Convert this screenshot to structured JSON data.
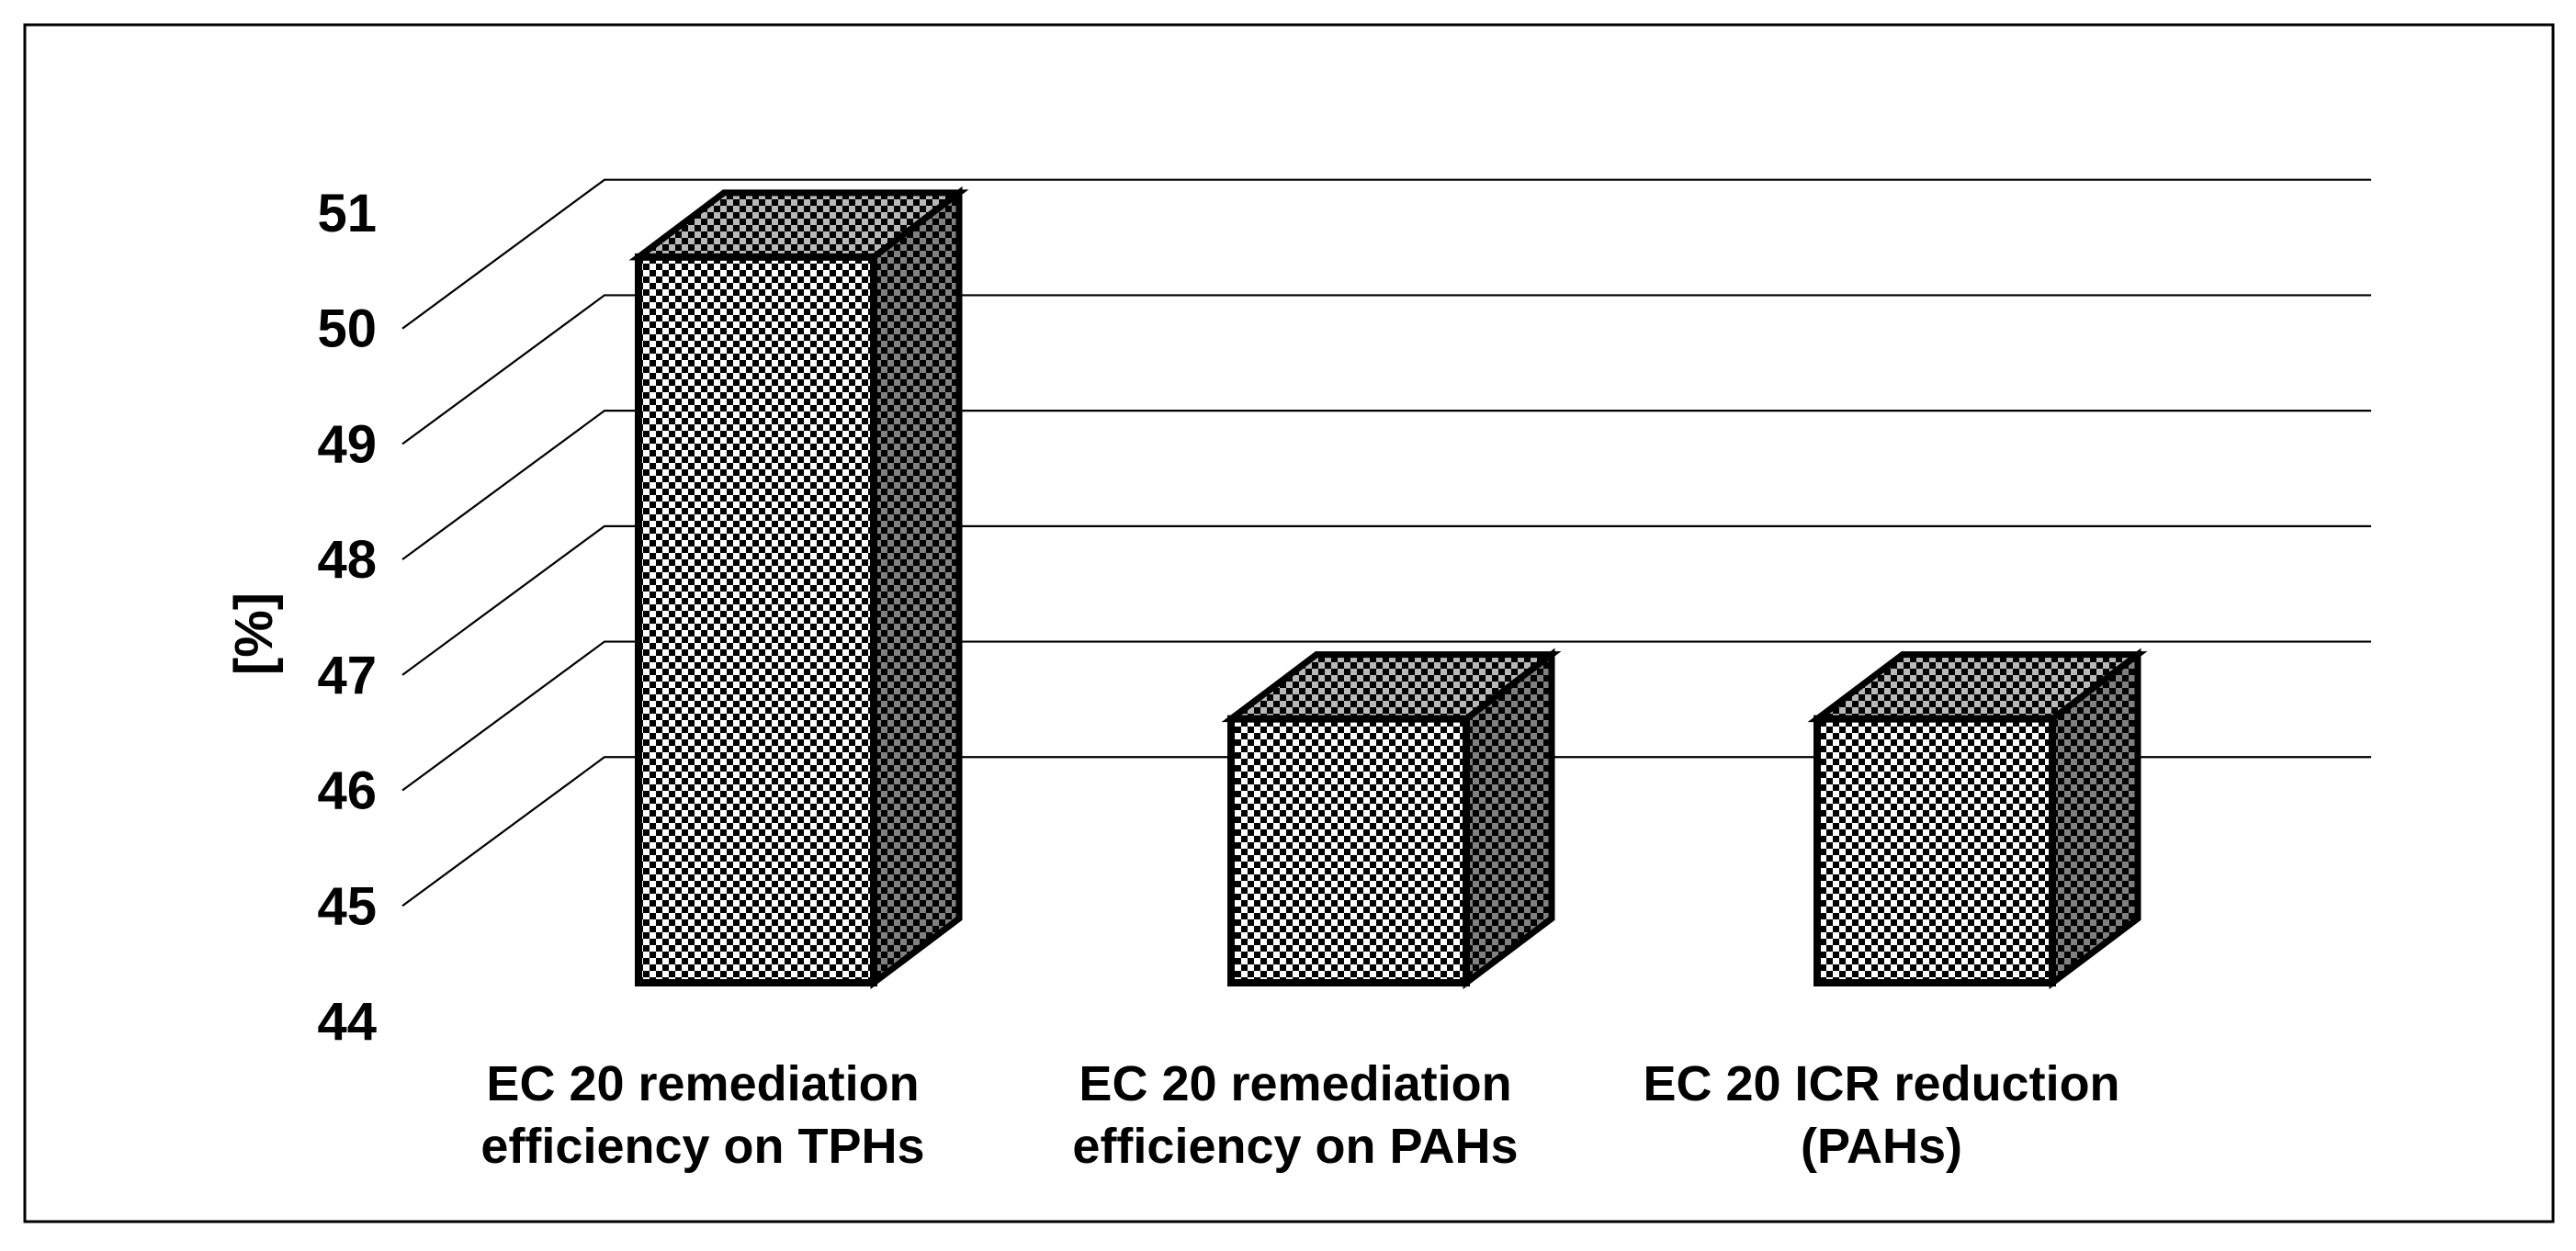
{
  "chart_data": {
    "type": "bar",
    "style": "3d-column-checkered-pattern",
    "title": "",
    "xlabel": "",
    "ylabel": "[%]",
    "ylim": [
      44,
      51
    ],
    "ytick_step": 1,
    "grid": true,
    "legend": false,
    "categories": [
      "EC 20 remediation efficiency on TPHs",
      "EC 20 remediation efficiency on PAHs",
      "EC 20 ICR reduction (PAHs)"
    ],
    "values": [
      50.6,
      46.4,
      46.4
    ]
  },
  "axis": {
    "ylabel": "[%]",
    "yticks": [
      "51",
      "50",
      "49",
      "48",
      "47",
      "46",
      "45",
      "44"
    ]
  },
  "category_lines": [
    [
      "EC 20 remediation",
      "efficiency on TPHs"
    ],
    [
      "EC 20 remediation",
      "efficiency on PAHs"
    ],
    [
      "EC 20 ICR reduction",
      "(PAHs)"
    ]
  ],
  "colors": {
    "background": "#ffffff",
    "line": "#000000",
    "text": "#000000",
    "bar_front_dot": "#ffffff",
    "bar_top_dot": "#b8b8b8",
    "bar_side_dot": "#808080",
    "bar_base": "#000000"
  }
}
